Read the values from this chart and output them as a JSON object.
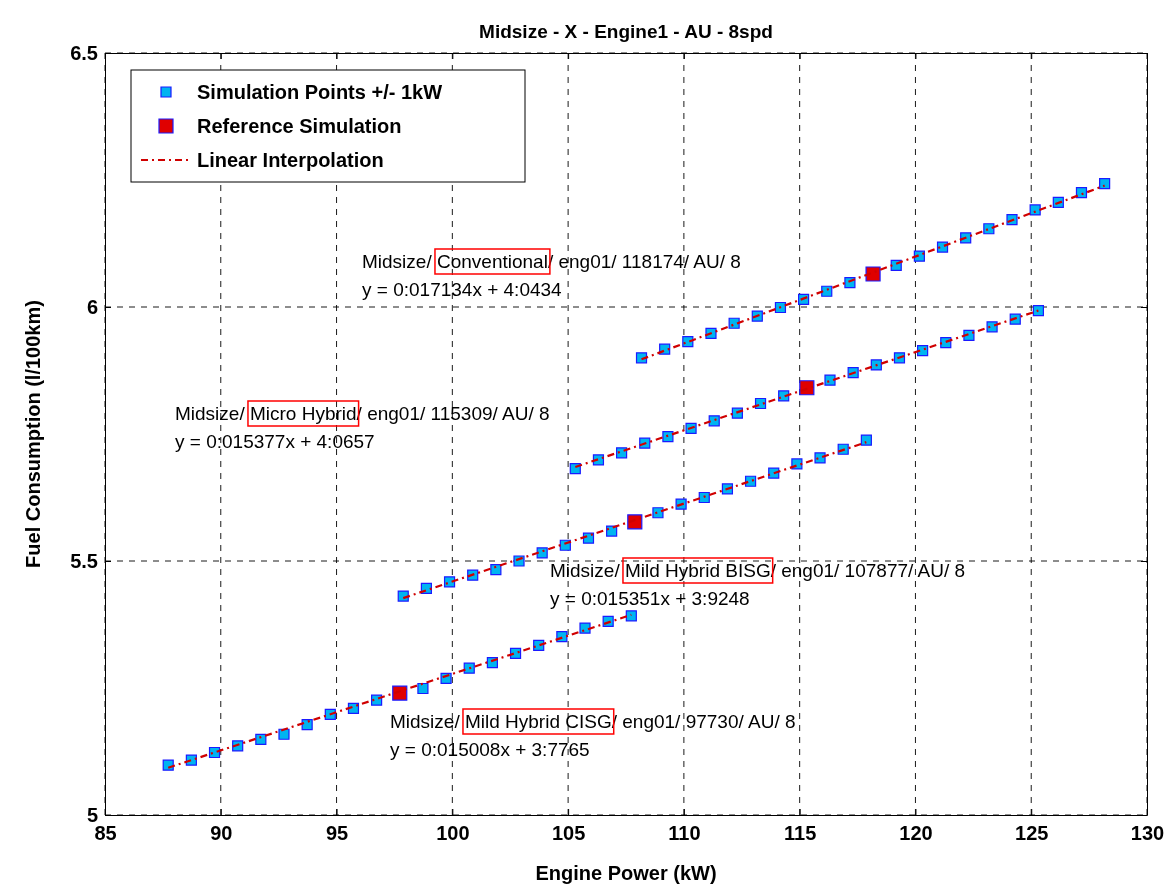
{
  "chart_data": {
    "type": "scatter",
    "title": "Midsize - X - Engine1 - AU - 8spd",
    "xlabel": "Engine Power (kW)",
    "ylabel": "Fuel Consumption (l/100km)",
    "xlim": [
      85,
      130
    ],
    "xticks": [
      85,
      90,
      95,
      100,
      105,
      110,
      115,
      120,
      125,
      130
    ],
    "ylim": [
      5,
      6.5
    ],
    "yticks": [
      5,
      5.5,
      6,
      6.5
    ],
    "grid": true,
    "legend": "top left",
    "series": [
      {
        "name": "Simulation Points +/- 1kW",
        "marker": "square",
        "color": "#00b4f0",
        "x": [
          108.17,
          109.17,
          110.17,
          111.17,
          112.17,
          113.17,
          114.17,
          115.17,
          116.17,
          117.17,
          119.17,
          120.17,
          121.17,
          122.17,
          123.17,
          124.17,
          125.17,
          126.17,
          127.17,
          128.17,
          105.31,
          106.31,
          107.31,
          108.31,
          109.31,
          110.31,
          111.31,
          112.31,
          113.31,
          114.31,
          116.31,
          117.31,
          118.31,
          119.31,
          120.31,
          121.31,
          122.31,
          123.31,
          124.31,
          125.31,
          97.88,
          98.88,
          99.88,
          100.88,
          101.88,
          102.88,
          103.88,
          104.88,
          105.88,
          106.88,
          108.88,
          109.88,
          110.88,
          111.88,
          112.88,
          113.88,
          114.88,
          115.88,
          116.88,
          117.88,
          87.73,
          88.73,
          89.73,
          90.73,
          91.73,
          92.73,
          93.73,
          94.73,
          95.73,
          96.73,
          98.73,
          99.73,
          100.73,
          101.73,
          102.73,
          103.73,
          104.73,
          105.73,
          106.73,
          107.73
        ],
        "values": [
          5.9,
          5.917,
          5.932,
          5.948,
          5.968,
          5.982,
          5.999,
          6.015,
          6.031,
          6.048,
          6.082,
          6.1,
          6.118,
          6.136,
          6.154,
          6.172,
          6.191,
          6.206,
          6.225,
          6.243,
          5.682,
          5.699,
          5.713,
          5.732,
          5.745,
          5.761,
          5.776,
          5.791,
          5.81,
          5.825,
          5.856,
          5.871,
          5.886,
          5.9,
          5.914,
          5.93,
          5.944,
          5.961,
          5.976,
          5.993,
          5.431,
          5.446,
          5.459,
          5.472,
          5.483,
          5.5,
          5.516,
          5.531,
          5.545,
          5.559,
          5.595,
          5.612,
          5.625,
          5.642,
          5.657,
          5.673,
          5.691,
          5.703,
          5.72,
          5.738,
          5.098,
          5.108,
          5.123,
          5.136,
          5.149,
          5.159,
          5.178,
          5.198,
          5.21,
          5.226,
          5.249,
          5.269,
          5.289,
          5.3,
          5.318,
          5.334,
          5.351,
          5.368,
          5.381,
          5.392
        ]
      },
      {
        "name": "Reference Simulation",
        "marker": "square",
        "color": "#e00000",
        "x": [
          118.17,
          115.31,
          107.88,
          97.73
        ],
        "values": [
          6.065,
          5.841,
          5.577,
          5.24
        ]
      },
      {
        "name": "Linear Interpolation",
        "type": "line",
        "marker": "none",
        "line_style": "dashdot",
        "color": "#d00000",
        "x": [
          108.17,
          128.17,
          null,
          105.31,
          125.31,
          null,
          97.88,
          117.88,
          null,
          87.73,
          107.73
        ],
        "values": [
          5.897,
          6.239,
          null,
          5.685,
          5.993,
          null,
          5.427,
          5.734,
          null,
          5.093,
          5.394
        ]
      }
    ],
    "annotations": [
      "Midsize/ Conventional/ eng01/ 118174/ AU/ 8",
      "y =  0:017134x + 4:0434",
      "Midsize/ Micro Hybrid/ eng01/ 115309/ AU/ 8",
      "y =  0:015377x + 4:0657",
      "Midsize/ Mild Hybrid BISG/ eng01/ 107877/ AU/ 8",
      "y =  0:015351x + 3:9248",
      "Midsize/ Mild Hybrid CISG/ eng01/ 97730/ AU/ 8",
      "y =  0:015008x + 3:7765"
    ]
  }
}
